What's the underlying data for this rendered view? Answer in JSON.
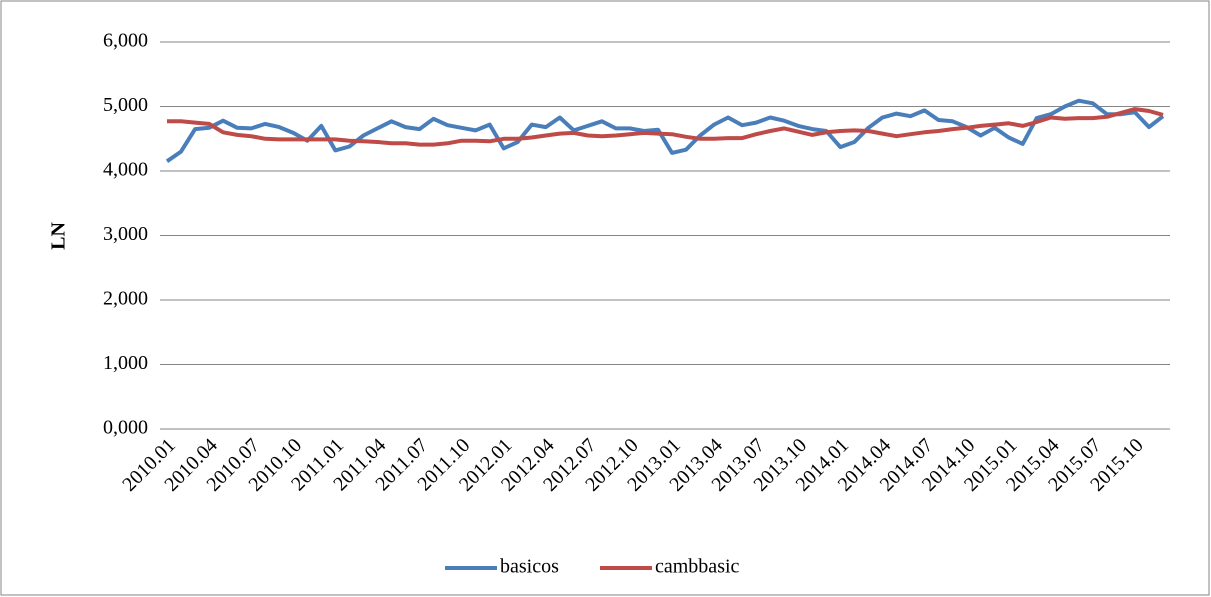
{
  "chart_data": {
    "type": "line",
    "y_label": "LN",
    "categories": [
      "2010.01",
      null,
      null,
      "2010.04",
      null,
      null,
      "2010.07",
      null,
      null,
      "2010.10",
      null,
      null,
      "2011.01",
      null,
      null,
      "2011.04",
      null,
      null,
      "2011.07",
      null,
      null,
      "2011.10",
      null,
      null,
      "2012.01",
      null,
      null,
      "2012.04",
      null,
      null,
      "2012.07",
      null,
      null,
      "2012.10",
      null,
      null,
      "2013.01",
      null,
      null,
      "2013.04",
      null,
      null,
      "2013.07",
      null,
      null,
      "2013.10",
      null,
      null,
      "2014.01",
      null,
      null,
      "2014.04",
      null,
      null,
      "2014.07",
      null,
      null,
      "2014.10",
      null,
      null,
      "2015.01",
      null,
      null,
      "2015.04",
      null,
      null,
      "2015.07",
      null,
      null,
      "2015.10",
      null,
      null
    ],
    "series": [
      {
        "name": "basicos",
        "color": "#4a7ebb",
        "values": [
          4.15,
          4.3,
          4.65,
          4.67,
          4.78,
          4.67,
          4.66,
          4.73,
          4.68,
          4.59,
          4.47,
          4.7,
          4.32,
          4.38,
          4.55,
          4.66,
          4.77,
          4.68,
          4.65,
          4.81,
          4.71,
          4.67,
          4.63,
          4.72,
          4.35,
          4.45,
          4.72,
          4.68,
          4.83,
          4.63,
          4.7,
          4.77,
          4.66,
          4.66,
          4.62,
          4.64,
          4.28,
          4.33,
          4.55,
          4.72,
          4.83,
          4.71,
          4.75,
          4.83,
          4.78,
          4.7,
          4.65,
          4.62,
          4.37,
          4.45,
          4.67,
          4.83,
          4.89,
          4.85,
          4.94,
          4.79,
          4.77,
          4.68,
          4.55,
          4.67,
          4.52,
          4.42,
          4.82,
          4.88,
          5.0,
          5.09,
          5.05,
          4.88,
          4.88,
          4.91,
          4.68,
          4.85
        ]
      },
      {
        "name": "cambbasic",
        "color": "#be4b48",
        "values": [
          4.77,
          4.77,
          4.75,
          4.73,
          4.6,
          4.56,
          4.54,
          4.5,
          4.49,
          4.49,
          4.49,
          4.49,
          4.49,
          4.47,
          4.46,
          4.45,
          4.43,
          4.43,
          4.41,
          4.41,
          4.43,
          4.47,
          4.47,
          4.46,
          4.5,
          4.5,
          4.52,
          4.55,
          4.58,
          4.59,
          4.55,
          4.54,
          4.55,
          4.57,
          4.59,
          4.58,
          4.57,
          4.53,
          4.5,
          4.5,
          4.51,
          4.51,
          4.57,
          4.62,
          4.66,
          4.61,
          4.56,
          4.6,
          4.62,
          4.63,
          4.62,
          4.58,
          4.54,
          4.57,
          4.6,
          4.62,
          4.65,
          4.67,
          4.7,
          4.72,
          4.74,
          4.7,
          4.76,
          4.83,
          4.81,
          4.82,
          4.82,
          4.84,
          4.9,
          4.96,
          4.93,
          4.87
        ]
      }
    ],
    "ylim": [
      0,
      6
    ],
    "yticks": [
      {
        "value": 0,
        "label": "0,000"
      },
      {
        "value": 1,
        "label": "1,000"
      },
      {
        "value": 2,
        "label": "2,000"
      },
      {
        "value": 3,
        "label": "3,000"
      },
      {
        "value": 4,
        "label": "4,000"
      },
      {
        "value": 5,
        "label": "5,000"
      },
      {
        "value": 6,
        "label": "6,000"
      }
    ],
    "grid": true,
    "legend": "bottom"
  }
}
